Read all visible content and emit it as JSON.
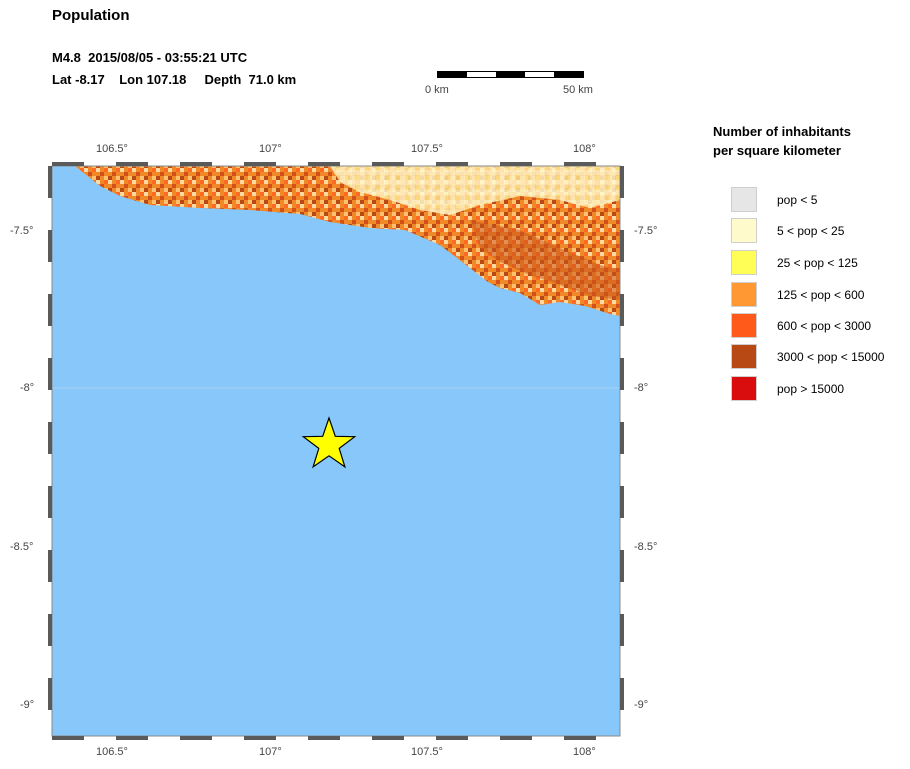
{
  "title": "Population",
  "event": {
    "line1": "M4.8  2015/08/05 - 03:55:21 UTC",
    "line2": "Lat -8.17    Lon 107.18     Depth  71.0 km"
  },
  "scale": {
    "start_label": "0 km",
    "end_label": "50 km"
  },
  "map": {
    "lon_ticks": [
      "106.5°",
      "107°",
      "107.5°",
      "108°"
    ],
    "lat_ticks": [
      "-7.5°",
      "-8°",
      "-8.5°",
      "-9°"
    ],
    "epicenter": {
      "lat": -8.17,
      "lon": 107.18
    },
    "ocean_color": "#87C7F9"
  },
  "legend": {
    "title_line1": "Number of inhabitants",
    "title_line2": "per square kilometer",
    "items": [
      {
        "label": "pop < 5",
        "color": "#E6E6E6"
      },
      {
        "label": "5 < pop < 25",
        "color": "#FFFACB"
      },
      {
        "label": "25 < pop < 125",
        "color": "#FFFE57"
      },
      {
        "label": "125 < pop < 600",
        "color": "#FF9833"
      },
      {
        "label": "600 < pop < 3000",
        "color": "#FF5A1A"
      },
      {
        "label": "3000 < pop < 15000",
        "color": "#B84914"
      },
      {
        "label": "pop > 15000",
        "color": "#D90D0D"
      }
    ]
  }
}
